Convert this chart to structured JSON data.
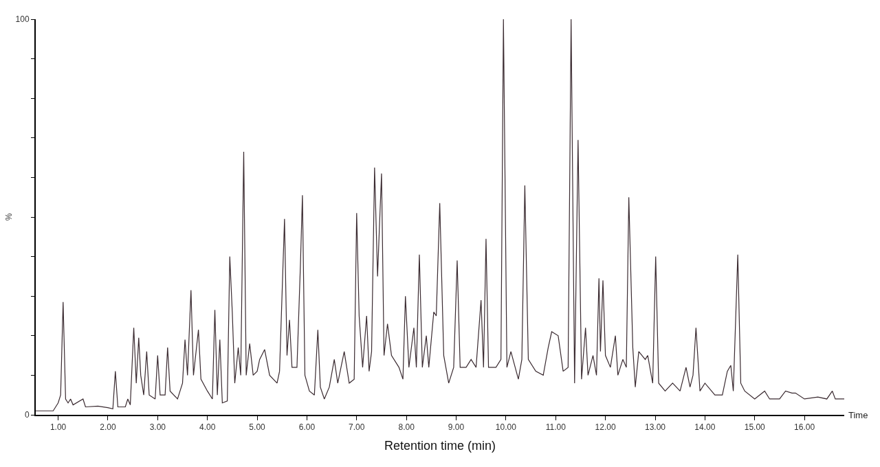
{
  "chart_data": {
    "type": "line",
    "xlabel": "Retention time (min)",
    "ylabel": "%",
    "annotations": [
      "Time"
    ],
    "x": [
      0.55,
      0.9,
      0.95,
      1.0,
      1.05,
      1.1,
      1.15,
      1.2,
      1.25,
      1.3,
      1.5,
      1.55,
      1.8,
      2.0,
      2.1,
      2.15,
      2.2,
      2.35,
      2.4,
      2.45,
      2.52,
      2.57,
      2.62,
      2.66,
      2.72,
      2.78,
      2.83,
      2.95,
      3.0,
      3.05,
      3.15,
      3.2,
      3.25,
      3.4,
      3.5,
      3.55,
      3.6,
      3.67,
      3.72,
      3.82,
      3.87,
      4.0,
      4.1,
      4.15,
      4.2,
      4.25,
      4.3,
      4.4,
      4.45,
      4.5,
      4.55,
      4.62,
      4.67,
      4.73,
      4.78,
      4.85,
      4.92,
      5.0,
      5.05,
      5.15,
      5.25,
      5.4,
      5.45,
      5.55,
      5.6,
      5.65,
      5.7,
      5.8,
      5.87,
      5.91,
      5.96,
      6.05,
      6.15,
      6.22,
      6.27,
      6.35,
      6.45,
      6.55,
      6.62,
      6.75,
      6.85,
      6.95,
      7.0,
      7.05,
      7.12,
      7.2,
      7.25,
      7.3,
      7.36,
      7.42,
      7.45,
      7.5,
      7.55,
      7.62,
      7.7,
      7.85,
      7.93,
      7.98,
      8.05,
      8.15,
      8.2,
      8.26,
      8.32,
      8.4,
      8.45,
      8.55,
      8.6,
      8.67,
      8.75,
      8.85,
      8.95,
      9.02,
      9.08,
      9.2,
      9.3,
      9.4,
      9.5,
      9.55,
      9.6,
      9.65,
      9.8,
      9.9,
      9.95,
      10.02,
      10.1,
      10.25,
      10.32,
      10.38,
      10.45,
      10.6,
      10.75,
      10.85,
      10.92,
      11.05,
      11.15,
      11.25,
      11.31,
      11.38,
      11.45,
      11.52,
      11.6,
      11.65,
      11.75,
      11.82,
      11.87,
      11.9,
      11.95,
      12.0,
      12.1,
      12.2,
      12.25,
      12.35,
      12.42,
      12.47,
      12.55,
      12.6,
      12.67,
      12.8,
      12.85,
      12.95,
      13.01,
      13.07,
      13.2,
      13.35,
      13.5,
      13.62,
      13.7,
      13.76,
      13.82,
      13.9,
      14.0,
      14.2,
      14.35,
      14.45,
      14.52,
      14.57,
      14.66,
      14.72,
      14.8,
      15.0,
      15.2,
      15.3,
      15.5,
      15.62,
      15.75,
      15.82,
      16.0,
      16.27,
      16.45,
      16.56,
      16.62,
      16.8
    ],
    "series": [
      {
        "color": "#3a2a30",
        "values": [
          1,
          1,
          2,
          3,
          5,
          28.5,
          4,
          3,
          4,
          2.5,
          4,
          2,
          2.2,
          1.8,
          1.5,
          11,
          2,
          2,
          4,
          2.5,
          22,
          8,
          19.5,
          10,
          5,
          16,
          5,
          4,
          15,
          5,
          5,
          17,
          6,
          4,
          8,
          19,
          10,
          31.5,
          10,
          21.5,
          9,
          6,
          4,
          26.5,
          5,
          19,
          3,
          3.5,
          40,
          26,
          8,
          17,
          10,
          66.5,
          10,
          18,
          10,
          11,
          14,
          16.5,
          10,
          8,
          11,
          49.5,
          15,
          24,
          12,
          12,
          38,
          55.5,
          10,
          6,
          5,
          21.5,
          7,
          4,
          7,
          14,
          8,
          16,
          8,
          9,
          51,
          25,
          12,
          25,
          11,
          16,
          62.5,
          35,
          45,
          61,
          15,
          23,
          15,
          12,
          9,
          30,
          12,
          22,
          12,
          40.5,
          12,
          20,
          12,
          26,
          25,
          53.5,
          15,
          8,
          12,
          39,
          12,
          12,
          14,
          12,
          29,
          12,
          44.5,
          12,
          12,
          14,
          100,
          12,
          16,
          9,
          14,
          58,
          14,
          11,
          10,
          17,
          21,
          20,
          11,
          12,
          100,
          8,
          69.5,
          9,
          22,
          10,
          15,
          10,
          34.5,
          16,
          34,
          15,
          12,
          20,
          10,
          14,
          12,
          55,
          17,
          7,
          16,
          14,
          15,
          8,
          40,
          8,
          6,
          8,
          6,
          12,
          7,
          10,
          22,
          6,
          8,
          5,
          5,
          11,
          12.5,
          6,
          40.5,
          8,
          6,
          4,
          6,
          4,
          4,
          6,
          5.5,
          5.5,
          4,
          4.5,
          4,
          6,
          4,
          4
        ]
      }
    ],
    "xlim": [
      0.55,
      16.8
    ],
    "ylim": [
      0,
      100
    ],
    "xticks": [
      {
        "value": 1,
        "label": "1.00"
      },
      {
        "value": 2,
        "label": "2.00"
      },
      {
        "value": 3,
        "label": "3.00"
      },
      {
        "value": 4,
        "label": "4.00"
      },
      {
        "value": 5,
        "label": "5.00"
      },
      {
        "value": 6,
        "label": "6.00"
      },
      {
        "value": 7,
        "label": "7.00"
      },
      {
        "value": 8,
        "label": "8.00"
      },
      {
        "value": 9,
        "label": "9.00"
      },
      {
        "value": 10,
        "label": "10.00"
      },
      {
        "value": 11,
        "label": "11.00"
      },
      {
        "value": 12,
        "label": "12.00"
      },
      {
        "value": 13,
        "label": "13.00"
      },
      {
        "value": 14,
        "label": "14.00"
      },
      {
        "value": 15,
        "label": "15.00"
      },
      {
        "value": 16,
        "label": "16.00"
      }
    ],
    "yticks": [
      0,
      {
        "value": 10,
        "label": null
      },
      {
        "value": 20,
        "label": null
      },
      {
        "value": 30,
        "label": null
      },
      {
        "value": 40,
        "label": null
      },
      {
        "value": 50,
        "label": null
      },
      {
        "value": 60,
        "label": null
      },
      {
        "value": 70,
        "label": null
      },
      {
        "value": 80,
        "label": null
      },
      {
        "value": 90,
        "label": null
      },
      100
    ],
    "grid": false,
    "marker": "none",
    "line_style": "solid"
  }
}
